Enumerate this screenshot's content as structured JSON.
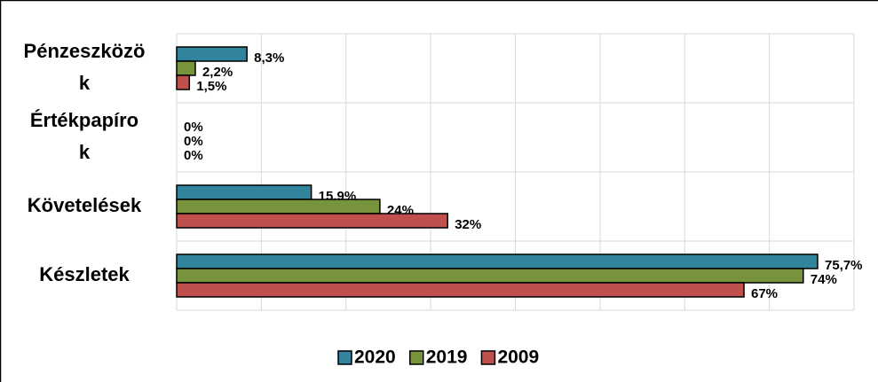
{
  "chart_data": {
    "type": "bar",
    "orientation": "horizontal",
    "categories": [
      "Pénzeszközök",
      "Értékpapírok",
      "Követelések",
      "Készletek"
    ],
    "series": [
      {
        "name": "2020",
        "color": "#31849b",
        "values": [
          8.3,
          0,
          15.9,
          75.7
        ],
        "value_labels": [
          "8,3%",
          "0%",
          "15,9%",
          "75,7%"
        ]
      },
      {
        "name": "2019",
        "color": "#77933c",
        "values": [
          2.2,
          0,
          24,
          74
        ],
        "value_labels": [
          "2,2%",
          "0%",
          "24%",
          "74%"
        ]
      },
      {
        "name": "2009",
        "color": "#c0504d",
        "values": [
          1.5,
          0,
          32,
          67
        ],
        "value_labels": [
          "1,5%",
          "0%",
          "32%",
          "67%"
        ]
      }
    ],
    "xlim": [
      0,
      80
    ],
    "xticks": [
      0,
      10,
      20,
      30,
      40,
      50,
      60,
      70,
      80
    ],
    "grid": true,
    "legend": "bottom"
  }
}
